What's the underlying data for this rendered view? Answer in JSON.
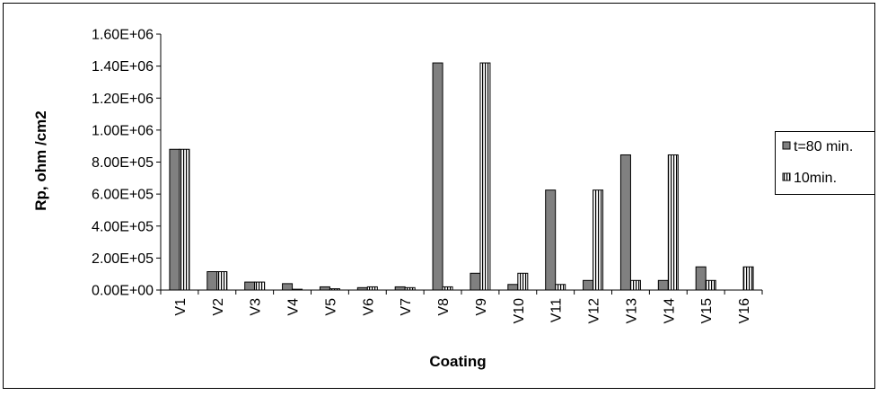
{
  "chart_data": {
    "type": "bar",
    "title": "",
    "xlabel": "Coating",
    "ylabel": "Rp, ohm /cm2",
    "ylim": [
      0,
      1600000
    ],
    "yticks": [
      "0.00E+00",
      "2.00E+05",
      "4.00E+05",
      "6.00E+05",
      "8.00E+05",
      "1.00E+06",
      "1.20E+06",
      "1.40E+06",
      "1.60E+06"
    ],
    "categories": [
      "V1",
      "V2",
      "V3",
      "V4",
      "V5",
      "V6",
      "V7",
      "V8",
      "V9",
      "V10",
      "V11",
      "V12",
      "V13",
      "V14",
      "V15",
      "V16"
    ],
    "series": [
      {
        "name": "t=80 min.",
        "pattern": "solid-gray",
        "color": "#808080",
        "values": [
          880000,
          115000,
          50000,
          40000,
          20000,
          15000,
          20000,
          1420000,
          105000,
          35000,
          625000,
          60000,
          845000,
          60000,
          145000,
          0
        ]
      },
      {
        "name": "10min.",
        "pattern": "vertical-stripes",
        "color": "#ffffff",
        "values": [
          880000,
          115000,
          50000,
          5000,
          8000,
          20000,
          15000,
          20000,
          1420000,
          105000,
          35000,
          625000,
          60000,
          845000,
          60000,
          145000
        ]
      }
    ],
    "legend_position": "right",
    "grid": false
  }
}
